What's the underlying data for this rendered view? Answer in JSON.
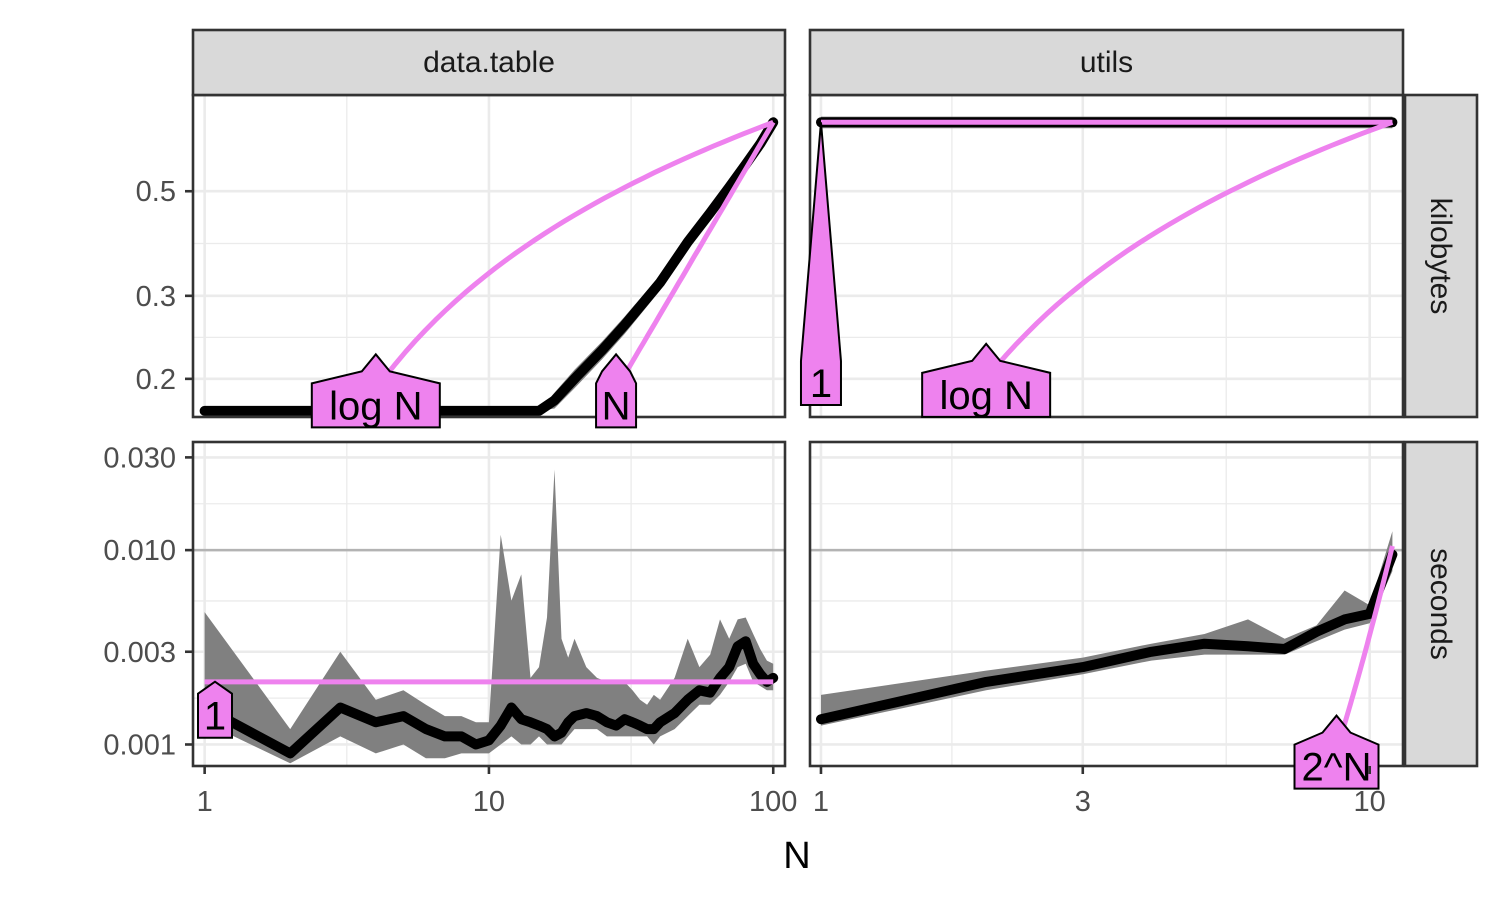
{
  "chart_data": {
    "type": "line",
    "title": "",
    "xlabel": "N",
    "x_scale": "log",
    "col_facets": [
      "data.table",
      "utils"
    ],
    "row_facets": [
      "kilobytes",
      "seconds"
    ],
    "panels": {
      "data.table": {
        "xlim": [
          1,
          100
        ],
        "x_ticks": [
          1,
          10,
          100
        ],
        "x_tick_labels": [
          "1",
          "10",
          "100"
        ]
      },
      "utils": {
        "xlim": [
          1,
          10
        ],
        "x_ticks": [
          1,
          3,
          10
        ],
        "x_tick_labels": [
          "1",
          "3",
          "10"
        ]
      }
    },
    "rows": {
      "kilobytes": {
        "y_scale": "log",
        "y_ticks": [
          0.2,
          0.3,
          0.5
        ],
        "y_tick_labels": [
          "0.2",
          "0.3",
          "0.5"
        ]
      },
      "seconds": {
        "y_scale": "log",
        "y_ticks": [
          0.001,
          0.003,
          0.01,
          0.03
        ],
        "y_tick_labels": [
          "0.001",
          "0.003",
          "0.010",
          "0.030"
        ],
        "reference_line": 0.01
      }
    },
    "measurements": [
      {
        "panel": "data.table",
        "row": "kilobytes",
        "x": [
          1,
          15,
          17,
          20,
          25,
          30,
          40,
          50,
          60,
          70,
          80,
          90,
          100
        ],
        "median": [
          0.171,
          0.171,
          0.18,
          0.2,
          0.23,
          0.26,
          0.32,
          0.39,
          0.45,
          0.51,
          0.57,
          0.63,
          0.7
        ],
        "band_halfwidth": [
          0,
          0,
          0.007,
          0.009,
          0.01,
          0.011,
          0.012,
          0.012,
          0.012,
          0.012,
          0.012,
          0.01,
          0.008
        ]
      },
      {
        "panel": "utils",
        "row": "kilobytes",
        "x": [
          1,
          11
        ],
        "median": [
          0.7,
          0.7
        ],
        "band_halfwidth": [
          0.02,
          0.02
        ]
      },
      {
        "panel": "data.table",
        "row": "seconds",
        "x": [
          1,
          2,
          3,
          4,
          5,
          6,
          7,
          8,
          9,
          10,
          11,
          12,
          13,
          14,
          15,
          16,
          17,
          18,
          19,
          20,
          22,
          24,
          26,
          28,
          30,
          32,
          34,
          36,
          38,
          40,
          45,
          50,
          55,
          60,
          65,
          70,
          75,
          80,
          85,
          90,
          95,
          100
        ],
        "median": [
          0.00155,
          0.0009,
          0.00155,
          0.0013,
          0.0014,
          0.0012,
          0.0011,
          0.0011,
          0.001,
          0.00105,
          0.00125,
          0.00155,
          0.00135,
          0.0013,
          0.00125,
          0.0012,
          0.0011,
          0.00115,
          0.0013,
          0.0014,
          0.00145,
          0.0014,
          0.0013,
          0.00125,
          0.00135,
          0.0013,
          0.00125,
          0.0012,
          0.0012,
          0.0013,
          0.00145,
          0.0017,
          0.0019,
          0.00185,
          0.0022,
          0.0025,
          0.0032,
          0.0034,
          0.0026,
          0.0023,
          0.0021,
          0.0022
        ],
        "lower": [
          0.0013,
          0.0008,
          0.0011,
          0.0009,
          0.001,
          0.00085,
          0.00085,
          0.0009,
          0.0009,
          0.0009,
          0.001,
          0.0011,
          0.001,
          0.001,
          0.0011,
          0.001,
          0.001,
          0.001,
          0.0011,
          0.0012,
          0.0012,
          0.0012,
          0.0011,
          0.0011,
          0.0011,
          0.0011,
          0.0011,
          0.0011,
          0.001,
          0.0011,
          0.0012,
          0.0014,
          0.0016,
          0.0016,
          0.0018,
          0.0021,
          0.0025,
          0.0026,
          0.0021,
          0.002,
          0.0019,
          0.0019
        ],
        "upper": [
          0.0048,
          0.0012,
          0.003,
          0.0017,
          0.0019,
          0.0016,
          0.0014,
          0.0014,
          0.0013,
          0.0013,
          0.012,
          0.0055,
          0.0075,
          0.0022,
          0.0025,
          0.0045,
          0.026,
          0.0035,
          0.0028,
          0.0035,
          0.0025,
          0.0022,
          0.0021,
          0.0021,
          0.0021,
          0.0019,
          0.0017,
          0.0016,
          0.0018,
          0.0017,
          0.0022,
          0.0035,
          0.0025,
          0.0029,
          0.0044,
          0.0035,
          0.0044,
          0.0045,
          0.0037,
          0.0031,
          0.0027,
          0.0026
        ]
      },
      {
        "panel": "utils",
        "row": "seconds",
        "x": [
          1,
          2,
          3,
          4,
          5,
          6,
          7,
          8,
          9,
          10,
          11
        ],
        "median": [
          0.00135,
          0.0021,
          0.0025,
          0.003,
          0.0033,
          0.0032,
          0.0031,
          0.0038,
          0.0044,
          0.0047,
          0.0095
        ],
        "lower": [
          0.00125,
          0.0019,
          0.0023,
          0.0027,
          0.0029,
          0.0029,
          0.0029,
          0.0034,
          0.0039,
          0.0042,
          0.0078
        ],
        "upper": [
          0.0018,
          0.0024,
          0.0028,
          0.0033,
          0.0037,
          0.0044,
          0.0035,
          0.0041,
          0.0062,
          0.0052,
          0.0125
        ]
      }
    ],
    "reference_curves": [
      {
        "panel": "data.table",
        "row": "kilobytes",
        "label": "log N",
        "label_x": 4,
        "label_y": 0.19
      },
      {
        "panel": "data.table",
        "row": "kilobytes",
        "label": "N",
        "label_x": 28,
        "label_y": 0.19
      },
      {
        "panel": "utils",
        "row": "kilobytes",
        "label": "1",
        "label_x": 1,
        "label_y": 0.2
      },
      {
        "panel": "utils",
        "row": "kilobytes",
        "label": "log N",
        "label_x": 2,
        "label_y": 0.2
      },
      {
        "panel": "data.table",
        "row": "seconds",
        "label": "1",
        "label_x": 1,
        "label_y": 0.0017
      },
      {
        "panel": "utils",
        "row": "seconds",
        "label": "2^N",
        "label_x": 8.7,
        "label_y": 0.00093
      }
    ],
    "colors": {
      "reference": "#ee82ee",
      "measurement": "#000000",
      "band": "#808080",
      "strip_fill": "#d9d9d9",
      "grid": "#ebebeb"
    }
  }
}
